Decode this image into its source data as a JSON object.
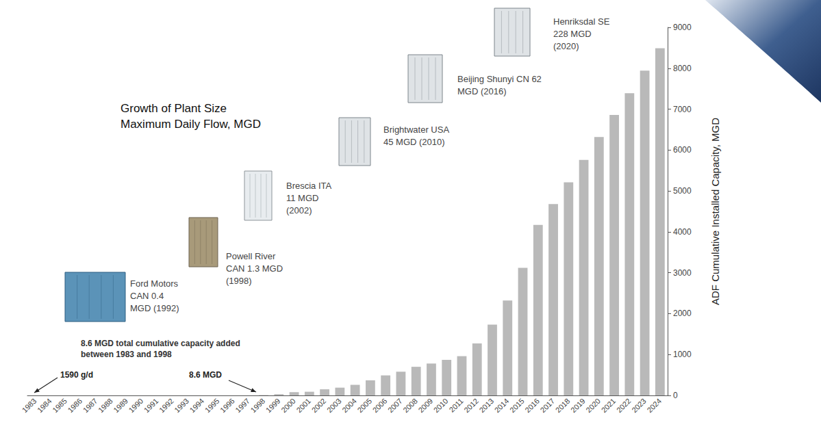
{
  "chart_data": {
    "type": "bar",
    "title": "Growth of Plant Size",
    "subtitle": "Maximum Daily Flow, MGD",
    "y_label": "ADF Cumulative Installed Capacity, MGD",
    "categories": [
      "1983",
      "1984",
      "1985",
      "1986",
      "1987",
      "1988",
      "1989",
      "1990",
      "1991",
      "1992",
      "1993",
      "1994",
      "1995",
      "1996",
      "1997",
      "1998",
      "1999",
      "2000",
      "2001",
      "2002",
      "2003",
      "2004",
      "2005",
      "2006",
      "2007",
      "2008",
      "2009",
      "2010",
      "2011",
      "2012",
      "2013",
      "2014",
      "2015",
      "2016",
      "2017",
      "2018",
      "2019",
      "2020",
      "2021",
      "2022",
      "2023",
      "2024"
    ],
    "values": [
      0.00159,
      null,
      null,
      null,
      null,
      null,
      null,
      null,
      null,
      null,
      null,
      null,
      null,
      null,
      null,
      8.6,
      30,
      80,
      90,
      150,
      190,
      260,
      370,
      490,
      580,
      700,
      780,
      870,
      960,
      1270,
      1730,
      2320,
      3120,
      4170,
      4680,
      5210,
      5760,
      6320,
      6860,
      7390,
      7940,
      8490
    ],
    "color": "#b9b9b9",
    "ylim": [
      0,
      9000
    ],
    "yticks": [
      0,
      1000,
      2000,
      3000,
      4000,
      5000,
      6000,
      7000,
      8000,
      9000
    ],
    "grid": false,
    "annotations": [
      {
        "lines": [
          "Ford Motors",
          "CAN 0.4",
          "MGD (1992)"
        ]
      },
      {
        "lines": [
          "Powell River",
          "CAN 1.3 MGD",
          "(1998)"
        ]
      },
      {
        "lines": [
          "Brescia ITA",
          "11 MGD",
          "(2002)"
        ]
      },
      {
        "lines": [
          "Brightwater USA",
          "45 MGD (2010)"
        ]
      },
      {
        "lines": [
          "Beijing Shunyi CN 62",
          "MGD (2016)"
        ]
      },
      {
        "lines": [
          "Henriksdal SE",
          "228 MGD",
          "(2020)"
        ]
      },
      {
        "lines": [
          "8.6 MGD total cumulative capacity added",
          "between 1983 and 1998"
        ]
      },
      {
        "lines": [
          "1590 g/d"
        ]
      },
      {
        "lines": [
          "8.6 MGD"
        ]
      }
    ]
  }
}
